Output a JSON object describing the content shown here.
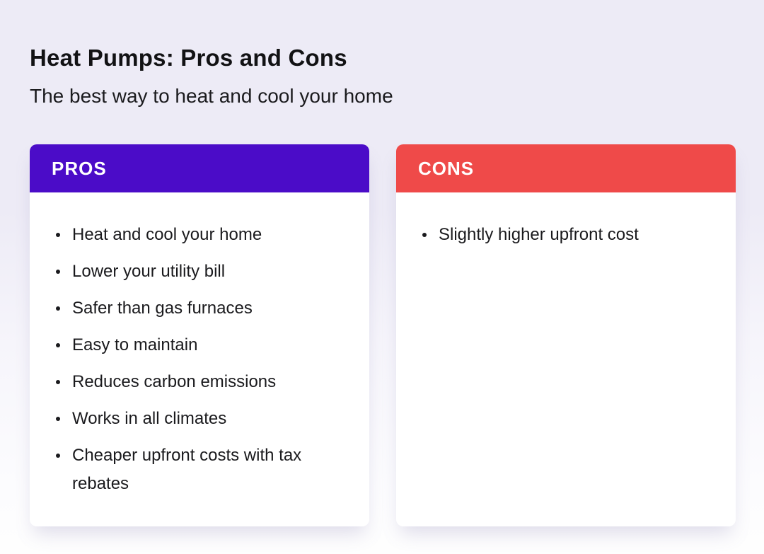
{
  "page": {
    "title": "Heat Pumps: Pros and Cons",
    "subtitle": "The best way to heat and cool your home"
  },
  "pros_card": {
    "header": "PROS",
    "header_color": "#4B0CC8",
    "items": [
      "Heat and cool your home",
      "Lower your utility bill",
      "Safer than gas furnaces",
      "Easy to maintain",
      "Reduces carbon emissions",
      "Works in all climates",
      "Cheaper upfront costs with tax rebates"
    ]
  },
  "cons_card": {
    "header": "CONS",
    "header_color": "#EF4A49",
    "items": [
      "Slightly higher upfront cost"
    ]
  },
  "colors": {
    "background_top": "#EDEBF6",
    "background_bottom": "#FEFEFE",
    "card_background": "#FFFFFF",
    "header_text": "#FFFFFF",
    "body_text": "#1A1A1D"
  }
}
